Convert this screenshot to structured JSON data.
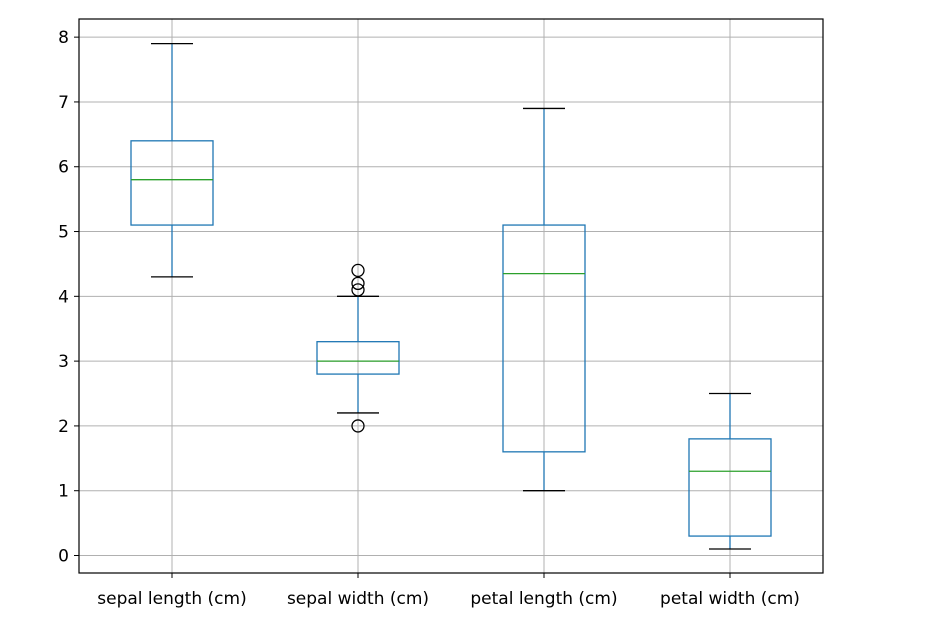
{
  "chart_data": {
    "type": "box",
    "title": "",
    "xlabel": "",
    "ylabel": "",
    "categories": [
      "sepal length (cm)",
      "sepal width (cm)",
      "petal length (cm)",
      "petal width (cm)"
    ],
    "ylim": [
      -0.27,
      8.28
    ],
    "yticks": [
      0,
      1,
      2,
      3,
      4,
      5,
      6,
      7,
      8
    ],
    "grid": true,
    "boxes": [
      {
        "name": "sepal length (cm)",
        "whisker_low": 4.3,
        "q1": 5.1,
        "median": 5.8,
        "q3": 6.4,
        "whisker_high": 7.9,
        "outliers": []
      },
      {
        "name": "sepal width (cm)",
        "whisker_low": 2.2,
        "q1": 2.8,
        "median": 3.0,
        "q3": 3.3,
        "whisker_high": 4.0,
        "outliers": [
          4.4,
          4.1,
          4.2,
          2.0
        ]
      },
      {
        "name": "petal length (cm)",
        "whisker_low": 1.0,
        "q1": 1.6,
        "median": 4.35,
        "q3": 5.1,
        "whisker_high": 6.9,
        "outliers": []
      },
      {
        "name": "petal width (cm)",
        "whisker_low": 0.1,
        "q1": 0.3,
        "median": 1.3,
        "q3": 1.8,
        "whisker_high": 2.5,
        "outliers": []
      }
    ],
    "colors": {
      "box": "#1f77b4",
      "median": "#2ca02c",
      "outlier": "#000000",
      "grid": "#b0b0b0",
      "axes": "#000000"
    }
  }
}
